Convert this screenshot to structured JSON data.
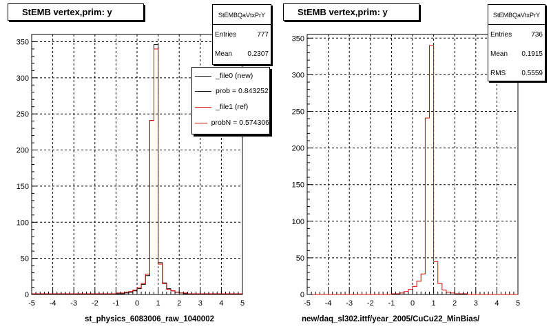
{
  "colors": {
    "file0": "#000000",
    "file1": "#dd0000",
    "grid": "#000000"
  },
  "left_panel": {
    "title": "StEMB  vertex,prim: y",
    "stats": {
      "name": "StEMBQaVtxPrY",
      "entries_label": "Entries",
      "entries": "777",
      "mean_label": "Mean",
      "mean": "0.2307"
    },
    "legend": [
      {
        "label": "_file0 (new)",
        "color": "#000000"
      },
      {
        "label": "prob = 0.843252",
        "color": "#000000"
      },
      {
        "label": "_file1 (ref)",
        "color": "#dd0000"
      },
      {
        "label": "probN = 0.574306",
        "color": "#dd0000"
      }
    ],
    "xtitle": "st_physics_6083006_raw_1040002"
  },
  "right_panel": {
    "title": "StEMB  vertex,prim: y",
    "stats": {
      "name": "StEMBQaVtxPrY",
      "entries_label": "Entries",
      "entries": "736",
      "mean_label": "Mean",
      "mean": "0.1915",
      "rms_label": "RMS",
      "rms": "0.5559"
    },
    "xtitle": "new/daq_sl302.ittf/year_2005/CuCu22_MinBias/"
  },
  "footer": "...",
  "chart_data": [
    {
      "type": "line",
      "title": "StEMB  vertex,prim: y",
      "xlabel": "st_physics_6083006_raw_1040002",
      "ylabel": "",
      "xlim": [
        -5,
        5
      ],
      "ylim": [
        0,
        360
      ],
      "xticks": [
        -5,
        -4,
        -3,
        -2,
        -1,
        0,
        1,
        2,
        3,
        4,
        5
      ],
      "yticks": [
        0,
        50,
        100,
        150,
        200,
        250,
        300,
        350
      ],
      "grid": true,
      "legend_position": "top-right",
      "bin_edges_from": -5,
      "bin_edges_to": 5,
      "bin_width": 0.2,
      "series": [
        {
          "name": "_file0 (new)",
          "color": "#000000",
          "values": [
            0,
            0,
            0,
            0,
            0,
            0,
            0,
            0,
            0,
            0,
            0,
            0,
            0,
            0,
            0,
            0,
            0,
            0,
            0,
            0,
            1,
            1,
            2,
            3,
            5,
            8,
            14,
            26,
            241,
            346,
            44,
            16,
            8,
            5,
            3,
            2,
            1,
            1,
            1,
            0,
            0,
            0,
            0,
            0,
            0,
            0,
            0,
            0,
            0,
            0
          ]
        },
        {
          "name": "_file1 (ref)",
          "color": "#dd0000",
          "values": [
            1,
            1,
            1,
            1,
            1,
            1,
            1,
            1,
            1,
            1,
            1,
            1,
            1,
            1,
            1,
            1,
            1,
            1,
            1,
            1,
            2,
            2,
            3,
            4,
            6,
            9,
            15,
            28,
            241,
            340,
            42,
            15,
            7,
            5,
            3,
            2,
            2,
            1,
            1,
            1,
            1,
            1,
            1,
            1,
            1,
            1,
            1,
            1,
            1,
            1
          ]
        }
      ]
    },
    {
      "type": "line",
      "title": "StEMB  vertex,prim: y",
      "xlabel": "new/daq_sl302.ittf/year_2005/CuCu22_MinBias/",
      "ylabel": "",
      "xlim": [
        -5,
        5
      ],
      "ylim": [
        0,
        355
      ],
      "xticks": [
        -5,
        -4,
        -3,
        -2,
        -1,
        0,
        1,
        2,
        3,
        4,
        5
      ],
      "yticks": [
        0,
        50,
        100,
        150,
        200,
        250,
        300,
        350
      ],
      "grid": true,
      "bin_edges_from": -5,
      "bin_edges_to": 5,
      "bin_width": 0.2,
      "series": [
        {
          "name": "",
          "color": "#dd0000",
          "values": [
            0,
            0,
            0,
            0,
            0,
            0,
            0,
            0,
            0,
            0,
            0,
            0,
            0,
            0,
            0,
            0,
            0,
            0,
            0,
            0,
            1,
            1,
            2,
            4,
            7,
            11,
            18,
            28,
            241,
            340,
            45,
            15,
            6,
            3,
            2,
            1,
            1,
            1,
            0,
            0,
            0,
            0,
            0,
            0,
            0,
            0,
            0,
            0,
            0,
            0
          ]
        }
      ]
    }
  ]
}
